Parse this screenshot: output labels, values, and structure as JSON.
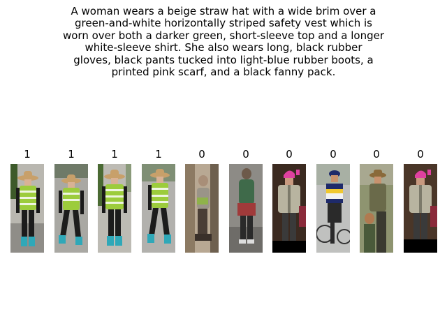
{
  "caption": {
    "lines": [
      "A woman wears a beige straw hat with a wide brim over a",
      "green-and-white horizontally striped safety vest which is",
      "worn over both a darker green, short-sleeve top and a longer",
      "white-sleeve shirt. She also wears long, black rubber",
      "gloves, black pants tucked into light-blue rubber boots, a",
      "printed pink scarf, and a black fanny pack."
    ]
  },
  "gallery": [
    {
      "label": "1",
      "icon": "woman-straw-hat-safety-vest-photo"
    },
    {
      "label": "1",
      "icon": "woman-straw-hat-safety-vest-photo"
    },
    {
      "label": "1",
      "icon": "woman-straw-hat-safety-vest-photo"
    },
    {
      "label": "1",
      "icon": "woman-straw-hat-safety-vest-photo"
    },
    {
      "label": "0",
      "icon": "blurred-pedestrian-photo"
    },
    {
      "label": "0",
      "icon": "pedestrian-green-backpack-photo"
    },
    {
      "label": "0",
      "icon": "man-pink-hat-jacket-photo"
    },
    {
      "label": "0",
      "icon": "cyclist-striped-shirt-photo"
    },
    {
      "label": "0",
      "icon": "man-hat-with-child-photo"
    },
    {
      "label": "0",
      "icon": "man-pink-hat-jacket-photo"
    }
  ],
  "colors": {
    "vest": "#9ccc3c",
    "straw_hat": "#c8a06a",
    "boots": "#2fa8b8",
    "pink_hat": "#e040a0"
  }
}
